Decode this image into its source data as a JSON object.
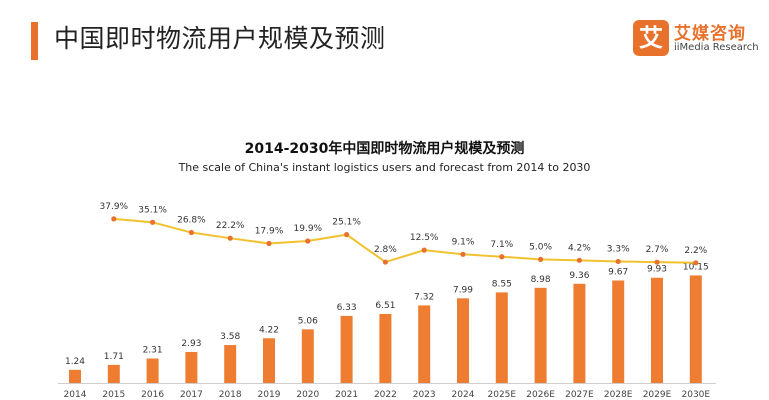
{
  "header": {
    "title": "中国即时物流用户规模及预测"
  },
  "brand": {
    "mark": "艾",
    "name_cn": "艾媒咨询",
    "name_en": "iiMedia Research"
  },
  "colors": {
    "accent": "#e8722c",
    "bar": "#ef7d31",
    "line": "#f2c12e",
    "line_marker": "#e8722c"
  },
  "chart_data": {
    "type": "bar",
    "title": "2014-2030年中国即时物流用户规模及预测",
    "subtitle": "The scale of China's instant logistics users and forecast from 2014 to 2030",
    "categories": [
      "2014",
      "2015",
      "2016",
      "2017",
      "2018",
      "2019",
      "2020",
      "2021",
      "2022",
      "2023",
      "2024",
      "2025E",
      "2026E",
      "2027E",
      "2028E",
      "2029E",
      "2030E"
    ],
    "series": [
      {
        "kind": "bar",
        "values": [
          1.24,
          1.71,
          2.31,
          2.93,
          3.58,
          4.22,
          5.06,
          6.33,
          6.51,
          7.32,
          7.99,
          8.55,
          8.98,
          9.36,
          9.67,
          9.93,
          10.15
        ],
        "labels": [
          "1.24",
          "1.71",
          "2.31",
          "2.93",
          "3.58",
          "4.22",
          "5.06",
          "6.33",
          "6.51",
          "7.32",
          "7.99",
          "8.55",
          "8.98",
          "9.36",
          "9.67",
          "9.93",
          "10.15"
        ]
      },
      {
        "kind": "line",
        "values": [
          null,
          37.9,
          35.1,
          26.8,
          22.2,
          17.9,
          19.9,
          25.1,
          2.8,
          12.5,
          9.1,
          7.1,
          5.0,
          4.2,
          3.3,
          2.7,
          2.2
        ],
        "labels": [
          "",
          "37.9%",
          "35.1%",
          "26.8%",
          "22.2%",
          "17.9%",
          "19.9%",
          "25.1%",
          "2.8%",
          "12.5%",
          "9.1%",
          "7.1%",
          "5.0%",
          "4.2%",
          "3.3%",
          "2.7%",
          "2.2%"
        ]
      }
    ],
    "grid": false,
    "legend": "none"
  }
}
